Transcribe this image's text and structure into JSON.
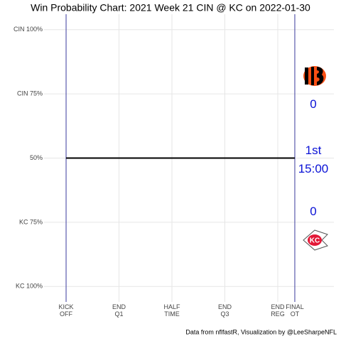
{
  "chart_data": {
    "type": "line",
    "title": "Win Probability Chart: 2021 Week 21 CIN @ KC on 2022-01-30",
    "caption": "Data from nflfastR, Visualization by @LeeSharpeNFL",
    "x": [
      0,
      3890
    ],
    "series": [
      {
        "color": "#000000",
        "values": [
          50,
          50
        ]
      }
    ],
    "xlim": [
      -375,
      4555
    ],
    "xticks": [
      {
        "value": 0,
        "label": "KICK\nOFF"
      },
      {
        "value": 900,
        "label": "END\nQ1"
      },
      {
        "value": 1800,
        "label": "HALF\nTIME"
      },
      {
        "value": 2700,
        "label": "END\nQ3"
      },
      {
        "value": 3600,
        "label": "END\nREG"
      },
      {
        "value": 3890,
        "label": "FINAL\nOT"
      }
    ],
    "ylim": [
      -6,
      106
    ],
    "yticks": [
      {
        "value": 100,
        "label": "CIN 100%"
      },
      {
        "value": 75,
        "label": "CIN 75%"
      },
      {
        "value": 50,
        "label": "50%"
      },
      {
        "value": 25,
        "label": "KC 75%"
      },
      {
        "value": 0,
        "label": "KC 100%"
      }
    ],
    "grid": true,
    "game_bounds_color": "#3b3b9e",
    "scoreboard": {
      "away_score": 0,
      "quarter": "1st",
      "clock": "15:00",
      "home_score": 0,
      "color": "#0a12d6"
    }
  }
}
